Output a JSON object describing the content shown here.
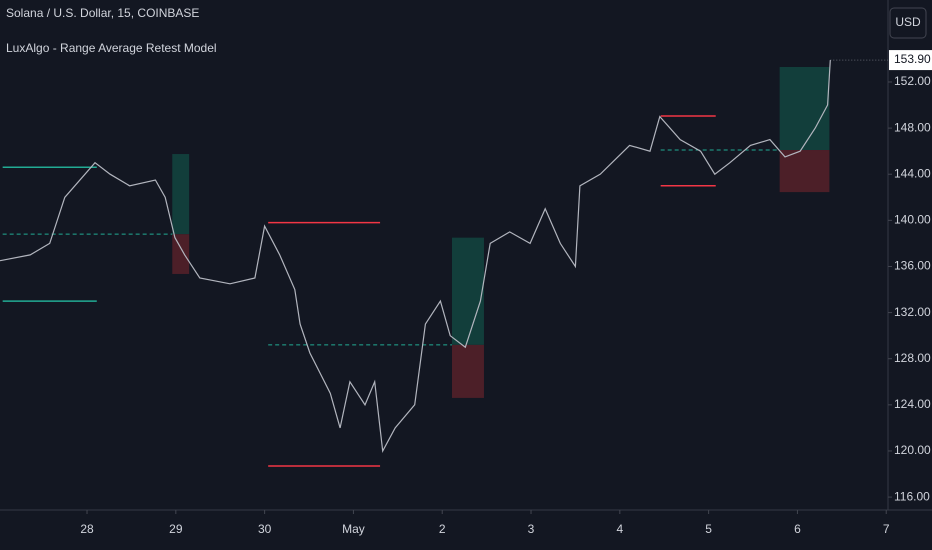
{
  "chart_data": {
    "type": "line",
    "title": "Solana / U.S. Dollar, 15, COINBASE",
    "subtitle": "LuxAlgo - Range Average Retest Model",
    "currency": "USD",
    "color": "#b2b5be",
    "x": [
      -0.98,
      -0.64,
      -0.42,
      -0.25,
      0.09,
      0.26,
      0.48,
      0.77,
      0.88,
      0.99,
      1.1,
      1.27,
      1.61,
      1.89,
      2.0,
      2.17,
      2.34,
      2.4,
      2.51,
      2.74,
      2.85,
      2.96,
      3.13,
      3.24,
      3.33,
      3.47,
      3.69,
      3.81,
      3.98,
      4.09,
      4.26,
      4.43,
      4.54,
      4.76,
      4.99,
      5.16,
      5.33,
      5.5,
      5.55,
      5.78,
      6.11,
      6.34,
      6.45,
      6.68,
      6.91,
      7.07,
      7.24,
      7.47,
      7.69,
      7.86,
      8.03,
      8.2,
      8.34,
      8.37
    ],
    "values": [
      136.5,
      137,
      138,
      142,
      145,
      144,
      143,
      143.5,
      142,
      138.5,
      137,
      135,
      134.5,
      135,
      139.5,
      137,
      134,
      131,
      128.5,
      125,
      122,
      126,
      124,
      126,
      120,
      122,
      124,
      131,
      133,
      130,
      129,
      133,
      138,
      139,
      138,
      141,
      138,
      136,
      143,
      144,
      146.5,
      146,
      149,
      147,
      146,
      144,
      145,
      146.5,
      147,
      145.5,
      146,
      148,
      150,
      153.9
    ],
    "xlim": [
      -0.98,
      9.02
    ],
    "ylim": [
      114.88,
      159.11
    ],
    "xticks": [
      {
        "value": 0,
        "label": "28"
      },
      {
        "value": 1,
        "label": "29"
      },
      {
        "value": 2,
        "label": "30"
      },
      {
        "value": 3,
        "label": "May"
      },
      {
        "value": 4,
        "label": "2"
      },
      {
        "value": 5,
        "label": "3"
      },
      {
        "value": 6,
        "label": "4"
      },
      {
        "value": 7,
        "label": "5"
      },
      {
        "value": 8,
        "label": "6"
      },
      {
        "value": 9,
        "label": "7"
      }
    ],
    "yticks": [
      {
        "value": 116,
        "label": "116.00"
      },
      {
        "value": 120,
        "label": "120.00"
      },
      {
        "value": 124,
        "label": "124.00"
      },
      {
        "value": 128,
        "label": "128.00"
      },
      {
        "value": 132,
        "label": "132.00"
      },
      {
        "value": 136,
        "label": "136.00"
      },
      {
        "value": 140,
        "label": "140.00"
      },
      {
        "value": 144,
        "label": "144.00"
      },
      {
        "value": 148,
        "label": "148.00"
      },
      {
        "value": 152,
        "label": "152.00"
      }
    ],
    "last_price": {
      "value": 153.9,
      "label": "153.90"
    },
    "levels": [
      {
        "x": [
          -0.95,
          0.11
        ],
        "value": 144.6,
        "color": "#22ab94",
        "style": "solid"
      },
      {
        "x": [
          -0.95,
          0.11
        ],
        "value": 133.0,
        "color": "#22ab94",
        "style": "solid"
      },
      {
        "x": [
          -0.95,
          0.96
        ],
        "value": 138.8,
        "color": "#22ab94",
        "style": "dashed"
      },
      {
        "x": [
          2.04,
          3.3
        ],
        "value": 139.8,
        "color": "#f23645",
        "style": "solid"
      },
      {
        "x": [
          2.04,
          3.3
        ],
        "value": 118.7,
        "color": "#f23645",
        "style": "solid"
      },
      {
        "x": [
          2.04,
          4.11
        ],
        "value": 129.2,
        "color": "#22ab94",
        "style": "dashed"
      },
      {
        "x": [
          6.46,
          7.08
        ],
        "value": 149.05,
        "color": "#f23645",
        "style": "solid"
      },
      {
        "x": [
          6.46,
          7.08
        ],
        "value": 143.0,
        "color": "#f23645",
        "style": "solid"
      },
      {
        "x": [
          6.46,
          7.8
        ],
        "value": 146.1,
        "color": "#22ab94",
        "style": "dashed"
      }
    ],
    "boxes": [
      {
        "x": [
          0.96,
          1.15
        ],
        "top": 145.75,
        "bottom": 138.8,
        "color": "#123e3b"
      },
      {
        "x": [
          0.96,
          1.15
        ],
        "top": 138.8,
        "bottom": 135.35,
        "color": "#4c1f28"
      },
      {
        "x": [
          4.11,
          4.47
        ],
        "top": 138.5,
        "bottom": 129.2,
        "color": "#123e3b"
      },
      {
        "x": [
          4.11,
          4.47
        ],
        "top": 129.2,
        "bottom": 124.6,
        "color": "#4c1f28"
      },
      {
        "x": [
          7.8,
          8.36
        ],
        "top": 153.3,
        "bottom": 146.1,
        "color": "#123e3b"
      },
      {
        "x": [
          7.8,
          8.36
        ],
        "top": 146.1,
        "bottom": 142.45,
        "color": "#4c1f28"
      }
    ]
  }
}
